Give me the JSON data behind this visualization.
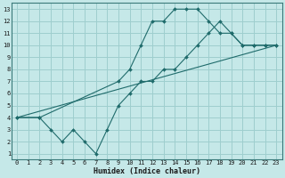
{
  "xlabel": "Humidex (Indice chaleur)",
  "bg_color": "#c5e8e8",
  "grid_color": "#9ecece",
  "line_color": "#1f6b6b",
  "xlim": [
    -0.5,
    23.5
  ],
  "ylim": [
    0.5,
    13.5
  ],
  "xticks": [
    0,
    1,
    2,
    3,
    4,
    5,
    6,
    7,
    8,
    9,
    10,
    11,
    12,
    13,
    14,
    15,
    16,
    17,
    18,
    19,
    20,
    21,
    22,
    23
  ],
  "yticks": [
    1,
    2,
    3,
    4,
    5,
    6,
    7,
    8,
    9,
    10,
    11,
    12,
    13
  ],
  "line1_x": [
    0,
    2,
    3,
    4,
    5,
    6,
    7,
    8,
    9,
    10,
    11,
    12,
    13,
    14,
    15,
    16,
    17,
    18,
    19,
    20,
    21,
    22,
    23
  ],
  "line1_y": [
    4,
    4,
    3,
    2,
    3,
    2,
    1,
    3,
    5,
    6,
    7,
    7,
    8,
    8,
    9,
    10,
    11,
    12,
    11,
    10,
    10,
    10,
    10
  ],
  "line2_x": [
    0,
    2,
    9,
    10,
    11,
    12,
    13,
    14,
    15,
    16,
    17,
    18,
    19,
    20,
    21,
    22,
    23
  ],
  "line2_y": [
    4,
    4,
    7,
    8,
    10,
    12,
    12,
    13,
    13,
    13,
    12,
    11,
    11,
    10,
    10,
    10,
    10
  ],
  "line3_x": [
    0,
    23
  ],
  "line3_y": [
    4,
    10
  ],
  "xlabel_fontsize": 6.0,
  "tick_fontsize": 5.0
}
